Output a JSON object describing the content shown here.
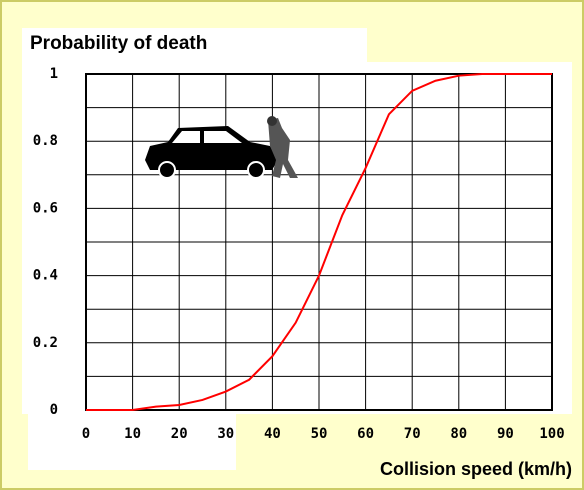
{
  "chart_data": {
    "type": "line",
    "title": "Probability of death",
    "x_label": "Collision speed (km/h)",
    "x": [
      0,
      10,
      15,
      20,
      25,
      30,
      35,
      40,
      45,
      50,
      55,
      60,
      65,
      70,
      75,
      80,
      85,
      90,
      100
    ],
    "series": [
      {
        "name": "Probability of death",
        "color": "#ff0000",
        "values": [
          0,
          0,
          0.01,
          0.015,
          0.03,
          0.055,
          0.09,
          0.16,
          0.26,
          0.4,
          0.58,
          0.72,
          0.88,
          0.95,
          0.98,
          0.995,
          1,
          1,
          1
        ]
      }
    ],
    "xlim": [
      0,
      100
    ],
    "xticks": [
      0,
      10,
      20,
      30,
      40,
      50,
      60,
      70,
      80,
      90,
      100
    ],
    "ylim": [
      0,
      1
    ],
    "yticks": [
      0,
      0.2,
      0.4,
      0.6,
      0.8,
      1
    ],
    "grid": true
  }
}
